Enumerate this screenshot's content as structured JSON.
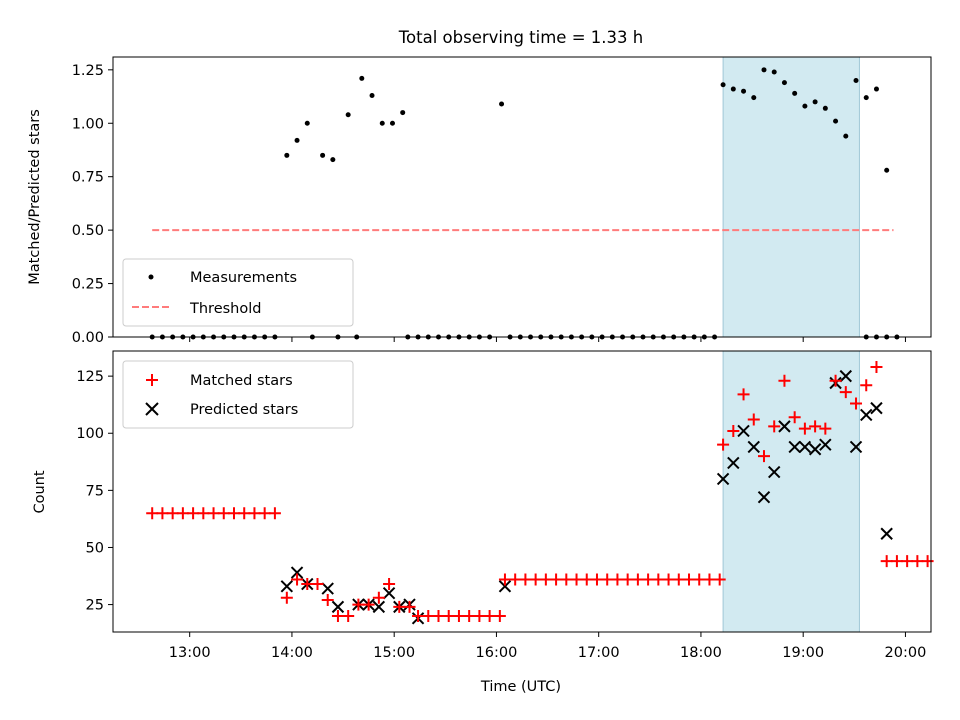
{
  "figure": {
    "title": "Total observing time = 1.33 h"
  },
  "chart_data": [
    {
      "type": "scatter",
      "ylabel": "Matched/Predicted stars",
      "xlabel": "",
      "ylim": [
        0,
        1.31
      ],
      "yticks": [
        0,
        0.25,
        0.5,
        0.75,
        1.0,
        1.25
      ],
      "ytick_labels": [
        "0.00",
        "0.25",
        "0.50",
        "0.75",
        "1.00",
        "1.25"
      ],
      "shaded_interval": [
        "18:13",
        "19:33"
      ],
      "legend": {
        "placement": "lower-left",
        "entries": [
          "Measurements",
          "Threshold"
        ]
      },
      "series": [
        {
          "name": "Measurements",
          "marker": "dot",
          "color": "#000000",
          "points": [
            [
              "12:38",
              0
            ],
            [
              "12:44",
              0
            ],
            [
              "12:50",
              0
            ],
            [
              "12:56",
              0
            ],
            [
              "13:02",
              0
            ],
            [
              "13:08",
              0
            ],
            [
              "13:14",
              0
            ],
            [
              "13:20",
              0
            ],
            [
              "13:26",
              0
            ],
            [
              "13:32",
              0
            ],
            [
              "13:38",
              0
            ],
            [
              "13:44",
              0
            ],
            [
              "13:50",
              0
            ],
            [
              "13:57",
              0.85
            ],
            [
              "14:03",
              0.92
            ],
            [
              "14:09",
              1.0
            ],
            [
              "14:12",
              0
            ],
            [
              "14:18",
              0.85
            ],
            [
              "14:24",
              0.83
            ],
            [
              "14:27",
              0
            ],
            [
              "14:33",
              1.04
            ],
            [
              "14:38",
              0
            ],
            [
              "14:41",
              1.21
            ],
            [
              "14:47",
              1.13
            ],
            [
              "14:53",
              1.0
            ],
            [
              "14:59",
              1.0
            ],
            [
              "15:05",
              1.05
            ],
            [
              "15:08",
              0
            ],
            [
              "15:14",
              0
            ],
            [
              "15:20",
              0
            ],
            [
              "15:26",
              0
            ],
            [
              "15:32",
              0
            ],
            [
              "15:38",
              0
            ],
            [
              "15:44",
              0
            ],
            [
              "15:50",
              0
            ],
            [
              "15:56",
              0
            ],
            [
              "16:03",
              1.09
            ],
            [
              "16:08",
              0
            ],
            [
              "16:14",
              0
            ],
            [
              "16:20",
              0
            ],
            [
              "16:26",
              0
            ],
            [
              "16:32",
              0
            ],
            [
              "16:38",
              0
            ],
            [
              "16:44",
              0
            ],
            [
              "16:50",
              0
            ],
            [
              "16:56",
              0
            ],
            [
              "17:02",
              0
            ],
            [
              "17:08",
              0
            ],
            [
              "17:14",
              0
            ],
            [
              "17:20",
              0
            ],
            [
              "17:26",
              0
            ],
            [
              "17:32",
              0
            ],
            [
              "17:38",
              0
            ],
            [
              "17:44",
              0
            ],
            [
              "17:50",
              0
            ],
            [
              "17:56",
              0
            ],
            [
              "18:02",
              0
            ],
            [
              "18:08",
              0
            ],
            [
              "18:13",
              1.18
            ],
            [
              "18:19",
              1.16
            ],
            [
              "18:25",
              1.15
            ],
            [
              "18:31",
              1.12
            ],
            [
              "18:37",
              1.25
            ],
            [
              "18:43",
              1.24
            ],
            [
              "18:49",
              1.19
            ],
            [
              "18:55",
              1.14
            ],
            [
              "19:01",
              1.08
            ],
            [
              "19:07",
              1.1
            ],
            [
              "19:13",
              1.07
            ],
            [
              "19:19",
              1.01
            ],
            [
              "19:25",
              0.94
            ],
            [
              "19:31",
              1.2
            ],
            [
              "19:37",
              1.12
            ],
            [
              "19:43",
              1.16
            ],
            [
              "19:49",
              0.78
            ],
            [
              "19:37",
              0
            ],
            [
              "19:43",
              0
            ],
            [
              "19:49",
              0
            ],
            [
              "19:55",
              0
            ]
          ]
        },
        {
          "name": "Threshold",
          "type": "dashed-line",
          "color": "#ff7b7b",
          "x": [
            "12:38",
            "19:53"
          ],
          "y": [
            0.5,
            0.5
          ]
        }
      ]
    },
    {
      "type": "scatter",
      "ylabel": "Count",
      "xlabel": "Time (UTC)",
      "xlim": [
        "12:15",
        "20:15"
      ],
      "ylim": [
        13,
        136
      ],
      "yticks": [
        25,
        50,
        75,
        100,
        125
      ],
      "ytick_labels": [
        "25",
        "50",
        "75",
        "100",
        "125"
      ],
      "xtick_labels": [
        "13:00",
        "14:00",
        "15:00",
        "16:00",
        "17:00",
        "18:00",
        "19:00",
        "20:00"
      ],
      "shaded_interval": [
        "18:13",
        "19:33"
      ],
      "legend": {
        "placement": "top-left",
        "entries": [
          "Matched stars",
          "Predicted stars"
        ]
      },
      "series": [
        {
          "name": "Matched stars",
          "marker": "plus",
          "color": "#ff0000",
          "points": [
            [
              "12:38",
              65
            ],
            [
              "12:44",
              65
            ],
            [
              "12:50",
              65
            ],
            [
              "12:56",
              65
            ],
            [
              "13:02",
              65
            ],
            [
              "13:08",
              65
            ],
            [
              "13:14",
              65
            ],
            [
              "13:20",
              65
            ],
            [
              "13:26",
              65
            ],
            [
              "13:32",
              65
            ],
            [
              "13:38",
              65
            ],
            [
              "13:44",
              65
            ],
            [
              "13:50",
              65
            ],
            [
              "13:57",
              28
            ],
            [
              "14:03",
              36
            ],
            [
              "14:09",
              34
            ],
            [
              "14:15",
              34
            ],
            [
              "14:21",
              27
            ],
            [
              "14:27",
              20
            ],
            [
              "14:33",
              20
            ],
            [
              "14:39",
              25
            ],
            [
              "14:45",
              25
            ],
            [
              "14:51",
              28
            ],
            [
              "14:57",
              34
            ],
            [
              "15:03",
              24
            ],
            [
              "15:09",
              24
            ],
            [
              "15:14",
              20
            ],
            [
              "15:20",
              20
            ],
            [
              "15:26",
              20
            ],
            [
              "15:32",
              20
            ],
            [
              "15:38",
              20
            ],
            [
              "15:44",
              20
            ],
            [
              "15:50",
              20
            ],
            [
              "15:56",
              20
            ],
            [
              "16:02",
              20
            ],
            [
              "16:05",
              36
            ],
            [
              "16:11",
              36
            ],
            [
              "16:17",
              36
            ],
            [
              "16:23",
              36
            ],
            [
              "16:29",
              36
            ],
            [
              "16:35",
              36
            ],
            [
              "16:41",
              36
            ],
            [
              "16:47",
              36
            ],
            [
              "16:53",
              36
            ],
            [
              "16:59",
              36
            ],
            [
              "17:05",
              36
            ],
            [
              "17:11",
              36
            ],
            [
              "17:17",
              36
            ],
            [
              "17:23",
              36
            ],
            [
              "17:29",
              36
            ],
            [
              "17:35",
              36
            ],
            [
              "17:41",
              36
            ],
            [
              "17:47",
              36
            ],
            [
              "17:53",
              36
            ],
            [
              "17:59",
              36
            ],
            [
              "18:05",
              36
            ],
            [
              "18:11",
              36
            ],
            [
              "18:13",
              95
            ],
            [
              "18:19",
              101
            ],
            [
              "18:25",
              117
            ],
            [
              "18:31",
              106
            ],
            [
              "18:37",
              90
            ],
            [
              "18:43",
              103
            ],
            [
              "18:49",
              123
            ],
            [
              "18:55",
              107
            ],
            [
              "19:01",
              102
            ],
            [
              "19:07",
              103
            ],
            [
              "19:13",
              102
            ],
            [
              "19:19",
              123
            ],
            [
              "19:25",
              118
            ],
            [
              "19:31",
              113
            ],
            [
              "19:37",
              121
            ],
            [
              "19:43",
              129
            ],
            [
              "19:49",
              44
            ],
            [
              "19:55",
              44
            ],
            [
              "20:01",
              44
            ],
            [
              "20:07",
              44
            ],
            [
              "20:13",
              44
            ]
          ]
        },
        {
          "name": "Predicted stars",
          "marker": "x",
          "color": "#000000",
          "points": [
            [
              "13:57",
              33
            ],
            [
              "14:03",
              39
            ],
            [
              "14:09",
              34
            ],
            [
              "14:21",
              32
            ],
            [
              "14:27",
              24
            ],
            [
              "14:39",
              25
            ],
            [
              "14:45",
              25
            ],
            [
              "14:51",
              24
            ],
            [
              "14:57",
              30
            ],
            [
              "15:03",
              24
            ],
            [
              "15:09",
              25
            ],
            [
              "15:14",
              19
            ],
            [
              "16:05",
              33
            ],
            [
              "18:13",
              80
            ],
            [
              "18:19",
              87
            ],
            [
              "18:25",
              101
            ],
            [
              "18:31",
              94
            ],
            [
              "18:37",
              72
            ],
            [
              "18:43",
              83
            ],
            [
              "18:49",
              103
            ],
            [
              "18:55",
              94
            ],
            [
              "19:01",
              94
            ],
            [
              "19:07",
              93
            ],
            [
              "19:13",
              95
            ],
            [
              "19:19",
              122
            ],
            [
              "19:25",
              125
            ],
            [
              "19:31",
              94
            ],
            [
              "19:37",
              108
            ],
            [
              "19:43",
              111
            ],
            [
              "19:49",
              56
            ]
          ]
        }
      ]
    }
  ]
}
